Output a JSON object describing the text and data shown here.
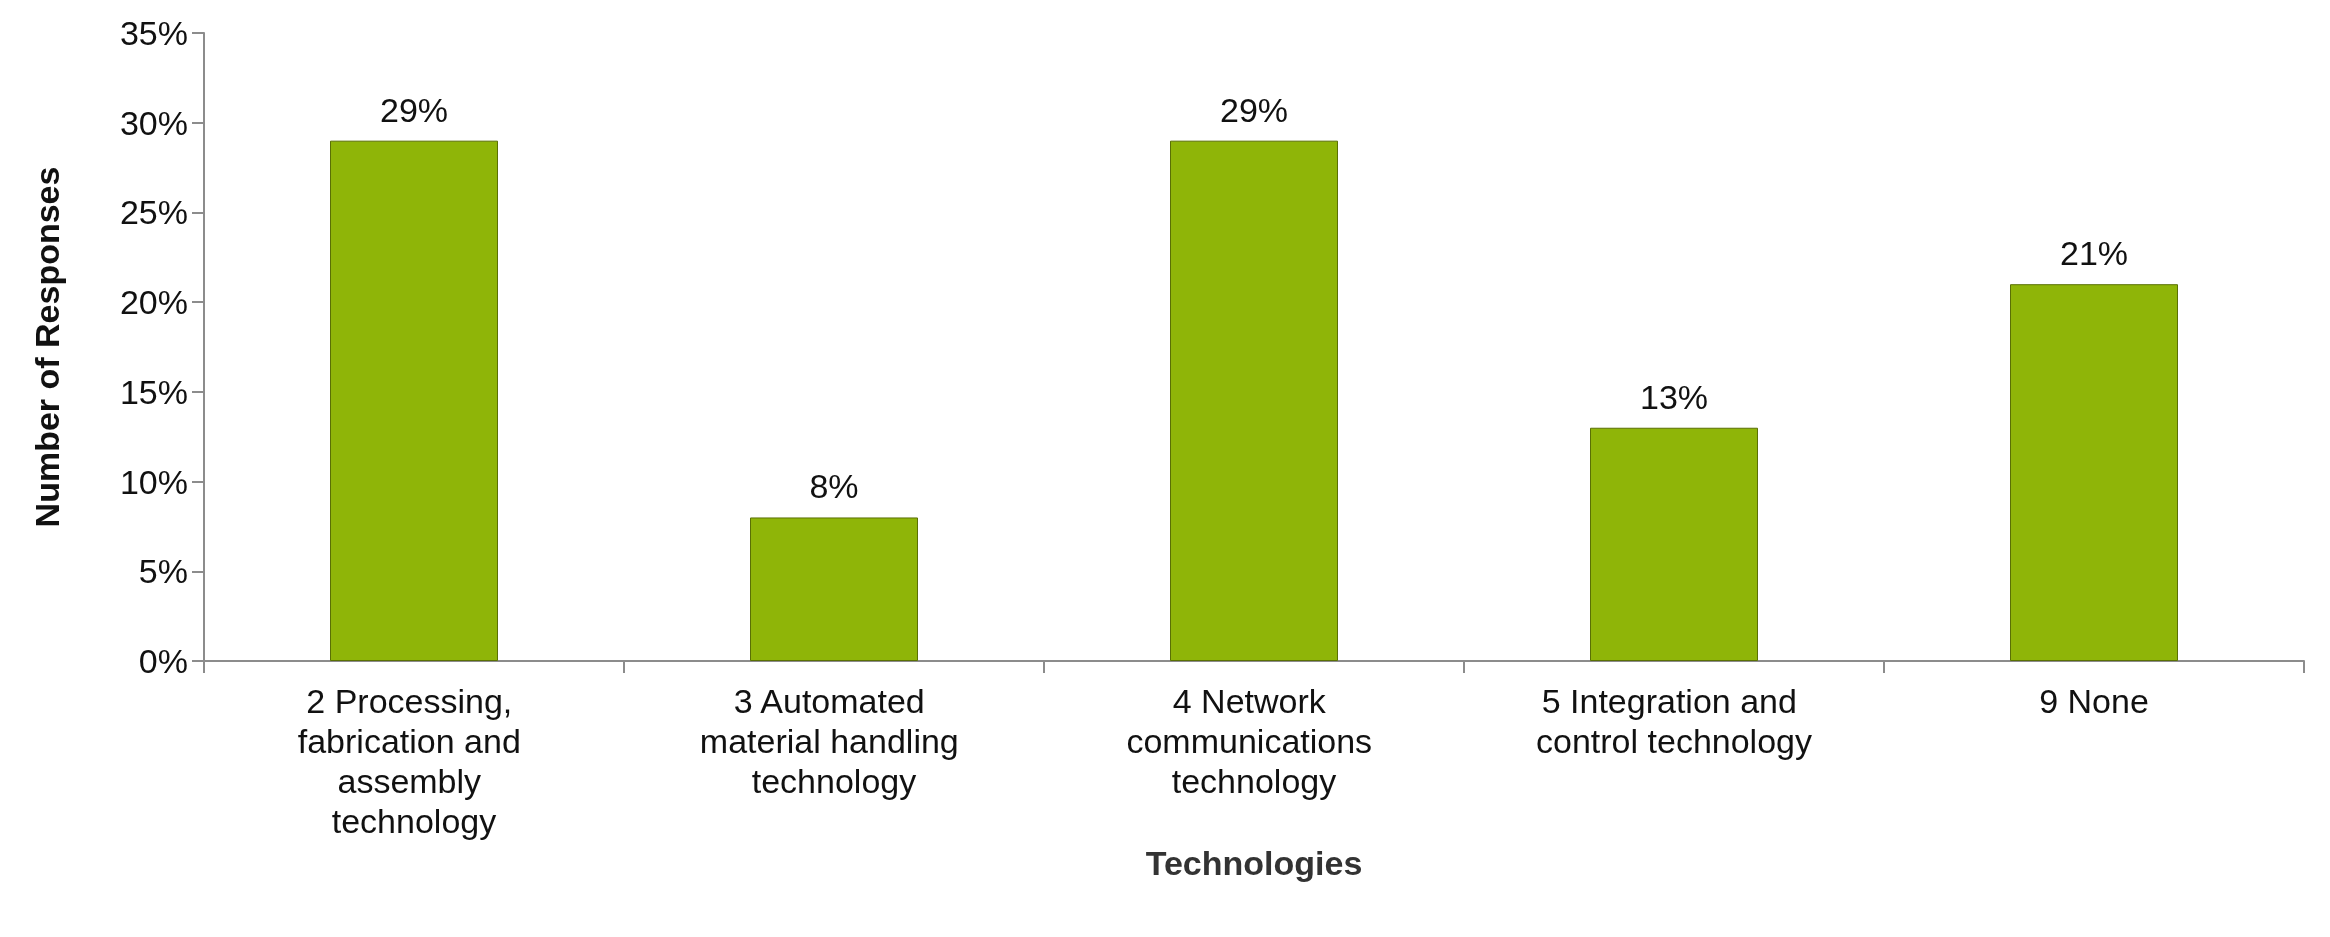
{
  "chart_data": {
    "type": "bar",
    "xlabel": "Technologies",
    "ylabel": "Number of Responses",
    "categories": [
      "2 Processing, fabrication and assembly technology",
      "3 Automated material handling technology",
      "4 Network communications technology",
      "5 Integration and control technology",
      "9 None"
    ],
    "values": [
      29,
      8,
      29,
      13,
      21
    ],
    "value_labels": [
      "29%",
      "8%",
      "29%",
      "13%",
      "21%"
    ],
    "color": "#8fb508",
    "ylim": [
      0,
      35
    ],
    "yticks": [
      {
        "value": 0,
        "label": "0%"
      },
      {
        "value": 5,
        "label": "5%"
      },
      {
        "value": 10,
        "label": "10%"
      },
      {
        "value": 15,
        "label": "15%"
      },
      {
        "value": 20,
        "label": "20%"
      },
      {
        "value": 25,
        "label": "25%"
      },
      {
        "value": 30,
        "label": "30%"
      },
      {
        "value": 35,
        "label": "35%"
      }
    ],
    "grid": false
  }
}
